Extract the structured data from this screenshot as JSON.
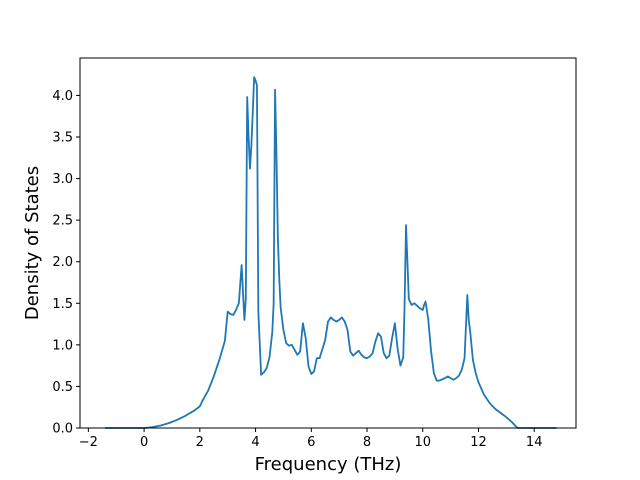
{
  "chart_data": {
    "type": "line",
    "title": "",
    "xlabel": "Frequency (THz)",
    "ylabel": "Density of States",
    "xlim": [
      -2.3,
      15.5
    ],
    "ylim": [
      0.0,
      4.45
    ],
    "grid": false,
    "line_color": "#1f77b4",
    "x_ticks": [
      -2,
      0,
      2,
      4,
      6,
      8,
      10,
      12,
      14
    ],
    "x_tick_labels": [
      "−2",
      "0",
      "2",
      "4",
      "6",
      "8",
      "10",
      "12",
      "14"
    ],
    "y_ticks": [
      0.0,
      0.5,
      1.0,
      1.5,
      2.0,
      2.5,
      3.0,
      3.5,
      4.0
    ],
    "y_tick_labels": [
      "0.0",
      "0.5",
      "1.0",
      "1.5",
      "2.0",
      "2.5",
      "3.0",
      "3.5",
      "4.0"
    ],
    "series": [
      {
        "x": [
          -1.4,
          -0.5,
          0.0,
          0.3,
          0.6,
          0.9,
          1.2,
          1.5,
          1.8,
          2.0,
          2.1,
          2.3,
          2.5,
          2.7,
          2.9,
          3.0,
          3.1,
          3.2,
          3.3,
          3.4,
          3.5,
          3.6,
          3.65,
          3.7,
          3.75,
          3.8,
          3.85,
          3.9,
          3.95,
          4.0,
          4.05,
          4.1,
          4.2,
          4.3,
          4.4,
          4.5,
          4.6,
          4.65,
          4.7,
          4.75,
          4.8,
          4.85,
          4.9,
          5.0,
          5.1,
          5.2,
          5.3,
          5.5,
          5.6,
          5.7,
          5.8,
          5.9,
          6.0,
          6.1,
          6.2,
          6.3,
          6.4,
          6.5,
          6.6,
          6.7,
          6.8,
          6.9,
          7.0,
          7.1,
          7.2,
          7.3,
          7.4,
          7.5,
          7.6,
          7.7,
          7.8,
          7.9,
          8.0,
          8.1,
          8.2,
          8.3,
          8.4,
          8.5,
          8.6,
          8.7,
          8.8,
          8.9,
          9.0,
          9.1,
          9.2,
          9.3,
          9.35,
          9.4,
          9.45,
          9.5,
          9.6,
          9.7,
          9.8,
          9.9,
          10.0,
          10.05,
          10.1,
          10.2,
          10.3,
          10.4,
          10.5,
          10.6,
          10.8,
          10.9,
          11.0,
          11.1,
          11.2,
          11.3,
          11.4,
          11.5,
          11.6,
          11.65,
          11.7,
          11.8,
          11.9,
          12.0,
          12.2,
          12.4,
          12.6,
          12.8,
          13.0,
          13.2,
          13.4,
          13.5,
          13.6,
          13.8,
          14.2,
          14.8
        ],
        "y": [
          0.0,
          0.0,
          0.0,
          0.01,
          0.03,
          0.06,
          0.1,
          0.15,
          0.21,
          0.26,
          0.33,
          0.45,
          0.62,
          0.82,
          1.05,
          1.4,
          1.37,
          1.36,
          1.42,
          1.5,
          1.96,
          1.3,
          1.55,
          3.98,
          3.5,
          3.12,
          3.4,
          3.8,
          4.22,
          4.18,
          4.12,
          1.4,
          0.64,
          0.67,
          0.72,
          0.85,
          1.15,
          1.5,
          4.07,
          3.3,
          2.3,
          1.8,
          1.45,
          1.18,
          1.02,
          0.99,
          1.0,
          0.88,
          0.92,
          1.26,
          1.08,
          0.74,
          0.65,
          0.68,
          0.84,
          0.84,
          0.95,
          1.06,
          1.28,
          1.33,
          1.3,
          1.28,
          1.3,
          1.33,
          1.28,
          1.18,
          0.92,
          0.87,
          0.9,
          0.93,
          0.88,
          0.85,
          0.84,
          0.86,
          0.9,
          1.04,
          1.14,
          1.1,
          0.9,
          0.84,
          0.87,
          1.08,
          1.26,
          0.95,
          0.75,
          0.85,
          1.5,
          2.44,
          2.0,
          1.55,
          1.48,
          1.5,
          1.47,
          1.44,
          1.42,
          1.48,
          1.52,
          1.3,
          0.92,
          0.66,
          0.57,
          0.57,
          0.6,
          0.62,
          0.6,
          0.58,
          0.6,
          0.63,
          0.7,
          0.84,
          1.6,
          1.3,
          1.17,
          0.82,
          0.66,
          0.55,
          0.4,
          0.3,
          0.23,
          0.18,
          0.13,
          0.07,
          0.0,
          0.0,
          0.0,
          0.0,
          0.0,
          0.0
        ]
      }
    ]
  }
}
